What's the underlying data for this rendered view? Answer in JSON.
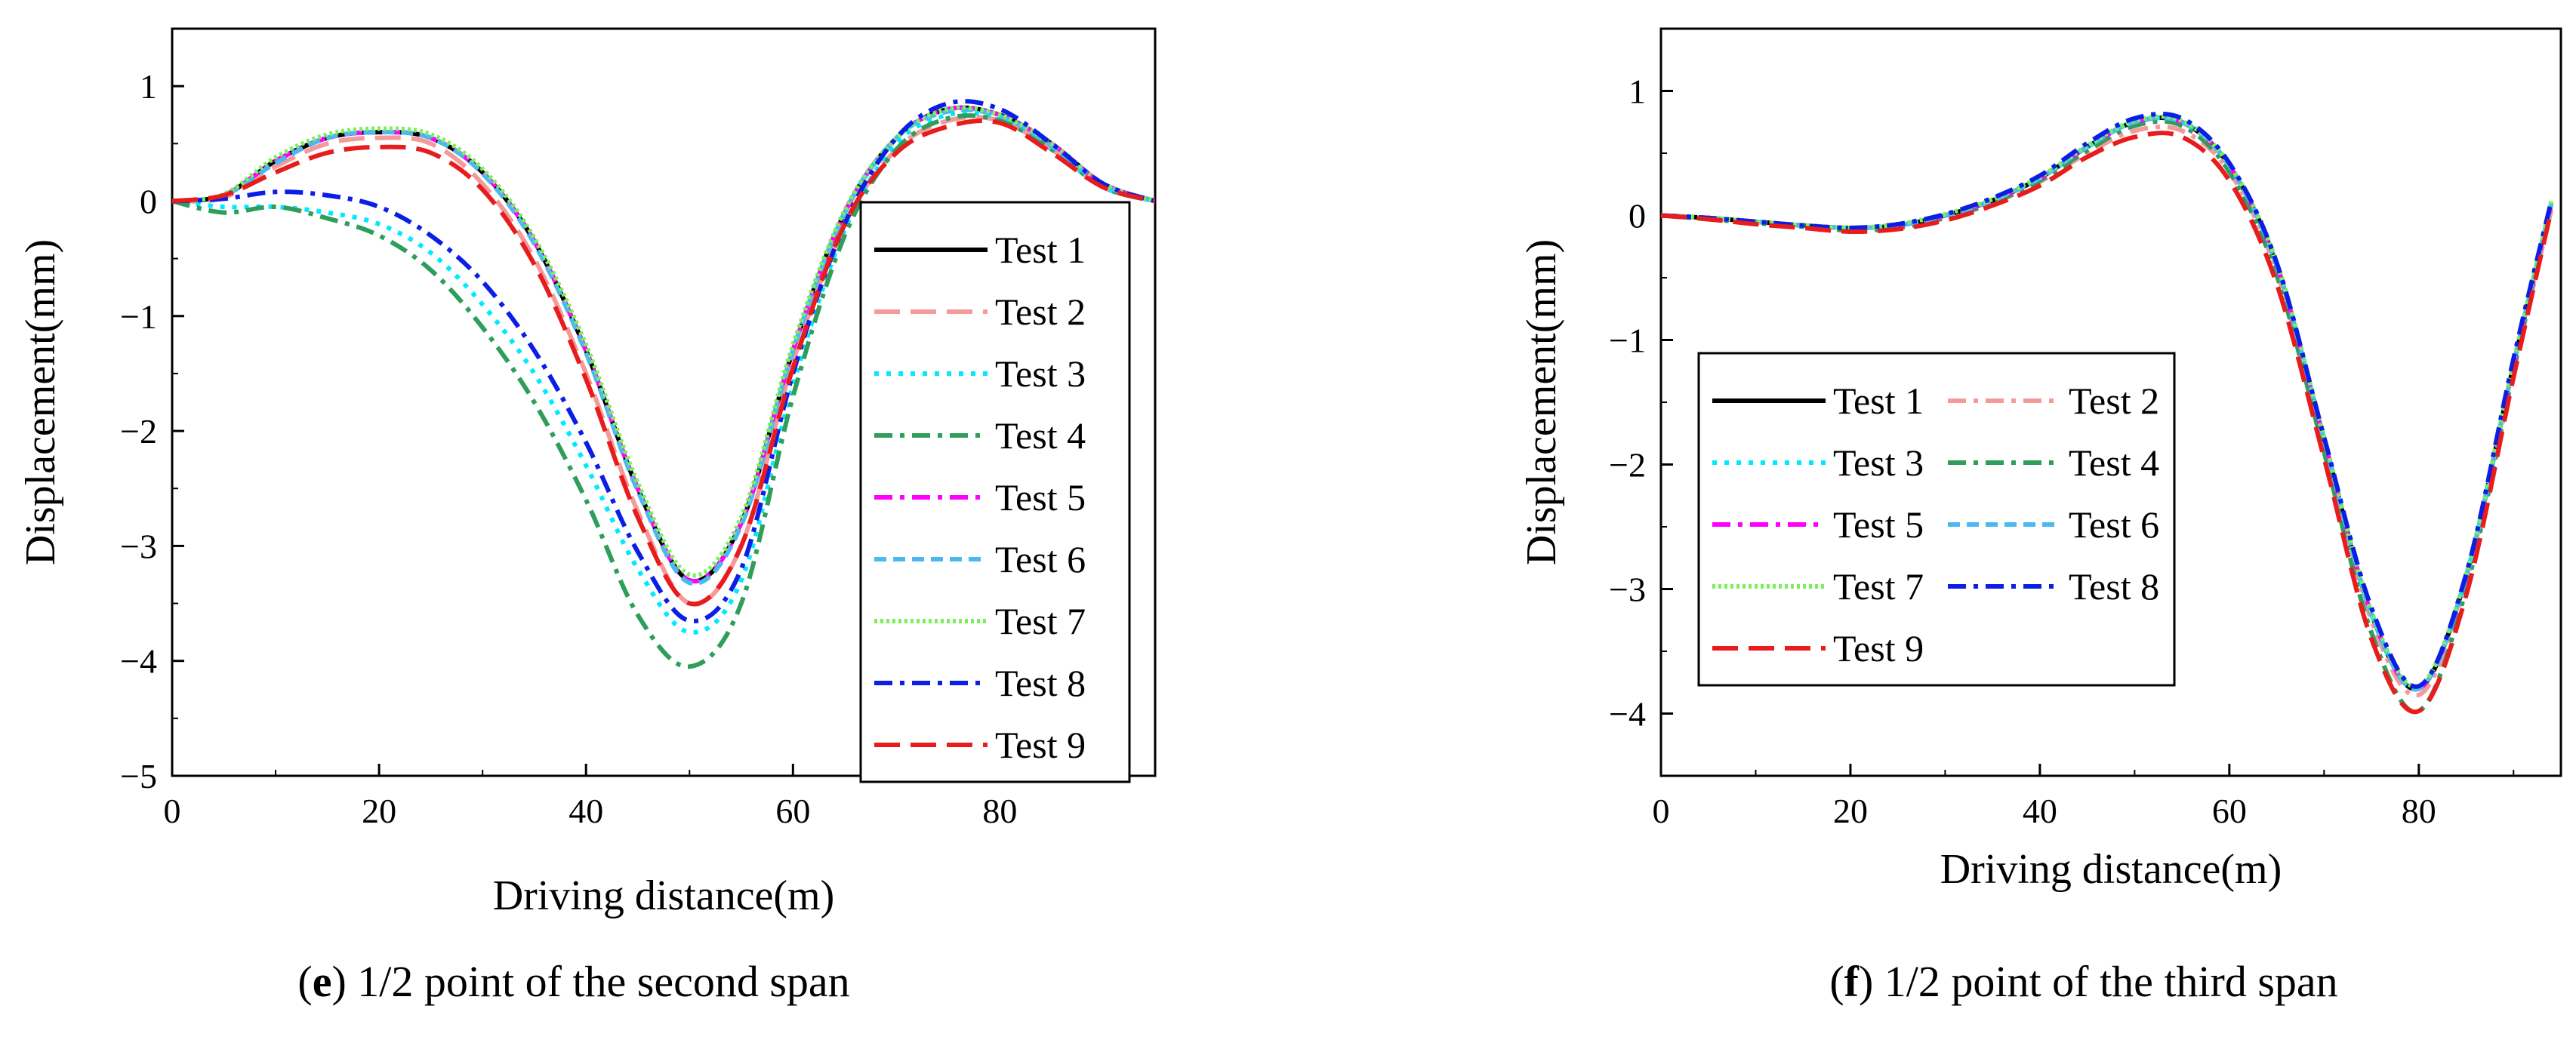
{
  "chart_data": [
    {
      "type": "line",
      "caption_letter": "e",
      "caption_text": " 1/2 point of the second span",
      "xlabel": "Driving distance(m)",
      "ylabel": "Displacement(mm)",
      "xlim": [
        0,
        95
      ],
      "ylim": [
        -5,
        1.5
      ],
      "xticks": [
        0,
        20,
        40,
        60,
        80
      ],
      "yticks": [
        -5,
        -4,
        -3,
        -2,
        -1,
        0,
        1
      ],
      "xtick_labels": [
        "0",
        "20",
        "40",
        "60",
        "80"
      ],
      "ytick_labels": [
        "−5",
        "−4",
        "−3",
        "−2",
        "−1",
        "0",
        "1"
      ],
      "legend_position": "right",
      "legend_columns": 1,
      "series": [
        {
          "name": "Test 1",
          "color": "#000000",
          "dash": "solid",
          "x": [
            0,
            5,
            10,
            15,
            20,
            25,
            30,
            35,
            40,
            45,
            50,
            55,
            60,
            65,
            70,
            75,
            80,
            85,
            90,
            95
          ],
          "y": [
            0,
            0.05,
            0.35,
            0.55,
            0.6,
            0.55,
            0.25,
            -0.35,
            -1.3,
            -2.5,
            -3.3,
            -2.8,
            -1.3,
            -0.1,
            0.55,
            0.8,
            0.75,
            0.5,
            0.15,
            0
          ]
        },
        {
          "name": "Test 2",
          "color": "#f59a9a",
          "dash": "long-dash",
          "x": [
            0,
            5,
            10,
            15,
            20,
            25,
            30,
            35,
            40,
            45,
            50,
            55,
            60,
            65,
            70,
            75,
            80,
            85,
            90,
            95
          ],
          "y": [
            0,
            0.03,
            0.3,
            0.5,
            0.55,
            0.5,
            0.15,
            -0.5,
            -1.5,
            -2.7,
            -3.5,
            -3.0,
            -1.4,
            -0.2,
            0.45,
            0.7,
            0.7,
            0.45,
            0.12,
            0
          ]
        },
        {
          "name": "Test 3",
          "color": "#00eaff",
          "dash": "dot",
          "x": [
            0,
            5,
            10,
            15,
            20,
            25,
            30,
            35,
            40,
            45,
            50,
            55,
            60,
            65,
            70,
            75,
            80,
            85,
            90,
            95
          ],
          "y": [
            0,
            -0.05,
            -0.05,
            -0.1,
            -0.2,
            -0.45,
            -0.9,
            -1.5,
            -2.3,
            -3.2,
            -3.75,
            -3.3,
            -1.6,
            -0.25,
            0.5,
            0.75,
            0.72,
            0.45,
            0.12,
            0
          ]
        },
        {
          "name": "Test 4",
          "color": "#2e9e5a",
          "dash": "dash-dot",
          "x": [
            0,
            5,
            10,
            15,
            20,
            25,
            30,
            35,
            40,
            45,
            50,
            55,
            60,
            65,
            70,
            75,
            80,
            85,
            90,
            95
          ],
          "y": [
            0,
            -0.1,
            -0.05,
            -0.15,
            -0.3,
            -0.6,
            -1.1,
            -1.75,
            -2.6,
            -3.6,
            -4.05,
            -3.5,
            -1.7,
            -0.3,
            0.45,
            0.72,
            0.7,
            0.45,
            0.12,
            0
          ]
        },
        {
          "name": "Test 5",
          "color": "#ff00ff",
          "dash": "dash-dot",
          "x": [
            0,
            5,
            10,
            15,
            20,
            25,
            30,
            35,
            40,
            45,
            50,
            55,
            60,
            65,
            70,
            75,
            80,
            85,
            90,
            95
          ],
          "y": [
            0,
            0.05,
            0.35,
            0.55,
            0.6,
            0.55,
            0.25,
            -0.35,
            -1.3,
            -2.5,
            -3.3,
            -2.8,
            -1.3,
            -0.1,
            0.55,
            0.8,
            0.75,
            0.5,
            0.15,
            0
          ]
        },
        {
          "name": "Test 6",
          "color": "#4cb8f0",
          "dash": "short-dash",
          "x": [
            0,
            5,
            10,
            15,
            20,
            25,
            30,
            35,
            40,
            45,
            50,
            55,
            60,
            65,
            70,
            75,
            80,
            85,
            90,
            95
          ],
          "y": [
            0,
            0.05,
            0.33,
            0.55,
            0.6,
            0.55,
            0.24,
            -0.37,
            -1.32,
            -2.52,
            -3.32,
            -2.82,
            -1.3,
            -0.1,
            0.55,
            0.78,
            0.74,
            0.48,
            0.14,
            0
          ]
        },
        {
          "name": "Test 7",
          "color": "#7cf05a",
          "dash": "fine-dot",
          "x": [
            0,
            5,
            10,
            15,
            20,
            25,
            30,
            35,
            40,
            45,
            50,
            55,
            60,
            65,
            70,
            75,
            80,
            85,
            90,
            95
          ],
          "y": [
            0,
            0.06,
            0.38,
            0.58,
            0.63,
            0.58,
            0.28,
            -0.32,
            -1.25,
            -2.45,
            -3.25,
            -2.75,
            -1.25,
            -0.08,
            0.55,
            0.8,
            0.75,
            0.5,
            0.15,
            0
          ]
        },
        {
          "name": "Test 8",
          "color": "#0a1ee6",
          "dash": "dash-dot",
          "x": [
            0,
            5,
            10,
            15,
            20,
            25,
            30,
            35,
            40,
            45,
            50,
            55,
            60,
            65,
            70,
            75,
            80,
            85,
            90,
            95
          ],
          "y": [
            0,
            0.02,
            0.08,
            0.05,
            -0.05,
            -0.3,
            -0.7,
            -1.3,
            -2.1,
            -3.05,
            -3.65,
            -3.2,
            -1.5,
            -0.2,
            0.55,
            0.85,
            0.8,
            0.5,
            0.15,
            0
          ]
        },
        {
          "name": "Test 9",
          "color": "#e81c1c",
          "dash": "long-dash",
          "x": [
            0,
            5,
            10,
            15,
            20,
            25,
            30,
            35,
            40,
            45,
            50,
            55,
            60,
            65,
            70,
            75,
            80,
            85,
            90,
            95
          ],
          "y": [
            0,
            0.05,
            0.25,
            0.42,
            0.47,
            0.42,
            0.1,
            -0.55,
            -1.55,
            -2.75,
            -3.5,
            -3.0,
            -1.45,
            -0.2,
            0.42,
            0.65,
            0.68,
            0.42,
            0.12,
            0
          ]
        }
      ]
    },
    {
      "type": "line",
      "caption_letter": "f",
      "caption_text": " 1/2 point of the third span",
      "xlabel": "Driving distance(m)",
      "ylabel": "Displacement(mm)",
      "xlim": [
        0,
        95
      ],
      "ylim": [
        -4.5,
        1.5
      ],
      "xticks": [
        0,
        20,
        40,
        60,
        80
      ],
      "yticks": [
        -4,
        -3,
        -2,
        -1,
        0,
        1
      ],
      "xtick_labels": [
        "0",
        "20",
        "40",
        "60",
        "80"
      ],
      "ytick_labels": [
        "−4",
        "−3",
        "−2",
        "−1",
        "0",
        "1"
      ],
      "legend_position": "left",
      "legend_columns": 2,
      "series": [
        {
          "name": "Test 1",
          "color": "#000000",
          "dash": "solid",
          "x": [
            0,
            5,
            10,
            15,
            20,
            25,
            30,
            35,
            40,
            45,
            50,
            55,
            60,
            65,
            70,
            75,
            80,
            85,
            90,
            94
          ],
          "y": [
            0,
            -0.02,
            -0.05,
            -0.08,
            -0.1,
            -0.08,
            0,
            0.12,
            0.3,
            0.55,
            0.75,
            0.75,
            0.4,
            -0.4,
            -1.8,
            -3.2,
            -3.8,
            -2.9,
            -1.2,
            0.1
          ]
        },
        {
          "name": "Test 2",
          "color": "#f59a9a",
          "dash": "dash-dot",
          "x": [
            0,
            5,
            10,
            15,
            20,
            25,
            30,
            35,
            40,
            45,
            50,
            55,
            60,
            65,
            70,
            75,
            80,
            85,
            90,
            94
          ],
          "y": [
            0,
            -0.02,
            -0.06,
            -0.09,
            -0.11,
            -0.09,
            -0.02,
            0.1,
            0.27,
            0.5,
            0.68,
            0.68,
            0.35,
            -0.45,
            -1.85,
            -3.25,
            -3.85,
            -2.95,
            -1.25,
            0.05
          ]
        },
        {
          "name": "Test 3",
          "color": "#00eaff",
          "dash": "dot",
          "x": [
            0,
            5,
            10,
            15,
            20,
            25,
            30,
            35,
            40,
            45,
            50,
            55,
            60,
            65,
            70,
            75,
            80,
            85,
            90,
            94
          ],
          "y": [
            0,
            -0.02,
            -0.05,
            -0.08,
            -0.1,
            -0.08,
            0,
            0.12,
            0.3,
            0.55,
            0.75,
            0.75,
            0.4,
            -0.4,
            -1.8,
            -3.2,
            -3.8,
            -2.9,
            -1.2,
            0.1
          ]
        },
        {
          "name": "Test 4",
          "color": "#2e9e5a",
          "dash": "dash-dot",
          "x": [
            0,
            5,
            10,
            15,
            20,
            25,
            30,
            35,
            40,
            45,
            50,
            55,
            60,
            65,
            70,
            75,
            80,
            85,
            90,
            94
          ],
          "y": [
            0,
            -0.03,
            -0.06,
            -0.09,
            -0.12,
            -0.1,
            -0.02,
            0.1,
            0.28,
            0.52,
            0.72,
            0.72,
            0.35,
            -0.48,
            -1.9,
            -3.35,
            -3.98,
            -3.0,
            -1.25,
            0.12
          ]
        },
        {
          "name": "Test 5",
          "color": "#ff00ff",
          "dash": "dash-dot",
          "x": [
            0,
            5,
            10,
            15,
            20,
            25,
            30,
            35,
            40,
            45,
            50,
            55,
            60,
            65,
            70,
            75,
            80,
            85,
            90,
            94
          ],
          "y": [
            0,
            -0.02,
            -0.05,
            -0.08,
            -0.1,
            -0.08,
            0,
            0.12,
            0.3,
            0.55,
            0.75,
            0.75,
            0.4,
            -0.4,
            -1.8,
            -3.2,
            -3.8,
            -2.9,
            -1.2,
            0.1
          ]
        },
        {
          "name": "Test 6",
          "color": "#4cb8f0",
          "dash": "short-dash",
          "x": [
            0,
            5,
            10,
            15,
            20,
            25,
            30,
            35,
            40,
            45,
            50,
            55,
            60,
            65,
            70,
            75,
            80,
            85,
            90,
            94
          ],
          "y": [
            0,
            -0.02,
            -0.05,
            -0.08,
            -0.1,
            -0.08,
            0,
            0.12,
            0.3,
            0.55,
            0.75,
            0.75,
            0.4,
            -0.4,
            -1.8,
            -3.2,
            -3.8,
            -2.9,
            -1.2,
            0.1
          ]
        },
        {
          "name": "Test 7",
          "color": "#7cf05a",
          "dash": "fine-dot",
          "x": [
            0,
            5,
            10,
            15,
            20,
            25,
            30,
            35,
            40,
            45,
            50,
            55,
            60,
            65,
            70,
            75,
            80,
            85,
            90,
            94
          ],
          "y": [
            0,
            -0.02,
            -0.05,
            -0.08,
            -0.1,
            -0.07,
            0.01,
            0.13,
            0.31,
            0.56,
            0.76,
            0.76,
            0.41,
            -0.38,
            -1.78,
            -3.18,
            -3.78,
            -2.88,
            -1.18,
            0.12
          ]
        },
        {
          "name": "Test 8",
          "color": "#0a1ee6",
          "dash": "dash-dot",
          "x": [
            0,
            5,
            10,
            15,
            20,
            25,
            30,
            35,
            40,
            45,
            50,
            55,
            60,
            65,
            70,
            75,
            80,
            85,
            90,
            94
          ],
          "y": [
            0,
            -0.02,
            -0.05,
            -0.08,
            -0.1,
            -0.07,
            0.01,
            0.14,
            0.32,
            0.58,
            0.78,
            0.78,
            0.42,
            -0.38,
            -1.78,
            -3.15,
            -3.78,
            -2.88,
            -1.15,
            0.12
          ]
        },
        {
          "name": "Test 9",
          "color": "#e81c1c",
          "dash": "long-dash",
          "x": [
            0,
            5,
            10,
            15,
            20,
            25,
            30,
            35,
            40,
            45,
            50,
            55,
            60,
            65,
            70,
            75,
            80,
            85,
            90,
            94
          ],
          "y": [
            0,
            -0.03,
            -0.07,
            -0.1,
            -0.13,
            -0.11,
            -0.04,
            0.08,
            0.24,
            0.47,
            0.63,
            0.63,
            0.28,
            -0.55,
            -1.95,
            -3.4,
            -3.98,
            -3.05,
            -1.3,
            0.05
          ]
        }
      ]
    }
  ]
}
